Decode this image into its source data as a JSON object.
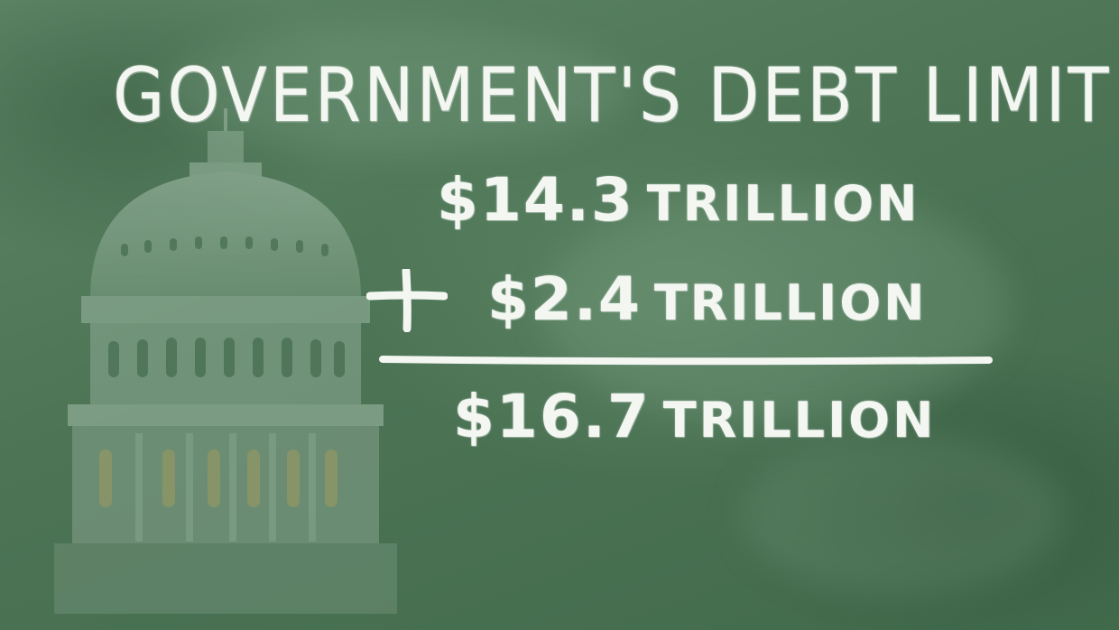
{
  "title": "GOVERNMENT'S DEBT LIMIT",
  "line1": {
    "amount": "$14.3",
    "unit": "TRILLION"
  },
  "line2": {
    "operator": "+",
    "amount": "$2.4",
    "unit": "TRILLION"
  },
  "line3": {
    "amount": "$16.7",
    "unit": "TRILLION"
  },
  "colors": {
    "chalkboard": "#4d7556",
    "chalk": "#f3f6f1"
  },
  "icons": {
    "background_image": "capitol-dome-icon",
    "operator": "plus-sign-icon",
    "rule": "sum-line-icon"
  }
}
